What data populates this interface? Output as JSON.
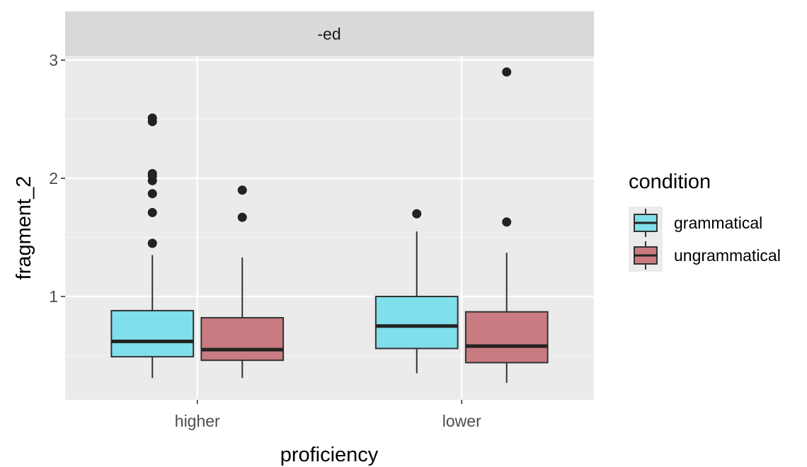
{
  "chart_data": {
    "type": "boxplot",
    "facet_label": "-ed",
    "xlabel": "proficiency",
    "ylabel": "fragment_2",
    "categories": [
      "higher",
      "lower"
    ],
    "ylim": [
      0.15,
      3.2
    ],
    "yticks": [
      "1",
      "2",
      "3"
    ],
    "grid": true,
    "legend": {
      "title": "condition",
      "position": "right"
    },
    "series": [
      {
        "name": "grammatical",
        "color": "#7fdfea",
        "boxes": [
          {
            "category": "higher",
            "whisker_low": 0.31,
            "q1": 0.49,
            "median": 0.62,
            "q3": 0.88,
            "whisker_high": 1.35,
            "outliers": [
              1.45,
              1.71,
              1.87,
              1.98,
              2.02,
              2.04,
              2.48,
              2.51
            ]
          },
          {
            "category": "lower",
            "whisker_low": 0.35,
            "q1": 0.56,
            "median": 0.75,
            "q3": 1.0,
            "whisker_high": 1.55,
            "outliers": [
              1.7
            ]
          }
        ]
      },
      {
        "name": "ungrammatical",
        "color": "#c97b81",
        "boxes": [
          {
            "category": "higher",
            "whisker_low": 0.31,
            "q1": 0.46,
            "median": 0.55,
            "q3": 0.82,
            "whisker_high": 1.33,
            "outliers": [
              1.67,
              1.9
            ]
          },
          {
            "category": "lower",
            "whisker_low": 0.27,
            "q1": 0.44,
            "median": 0.58,
            "q3": 0.87,
            "whisker_high": 1.37,
            "outliers": [
              1.63,
              2.9
            ]
          }
        ]
      }
    ]
  }
}
